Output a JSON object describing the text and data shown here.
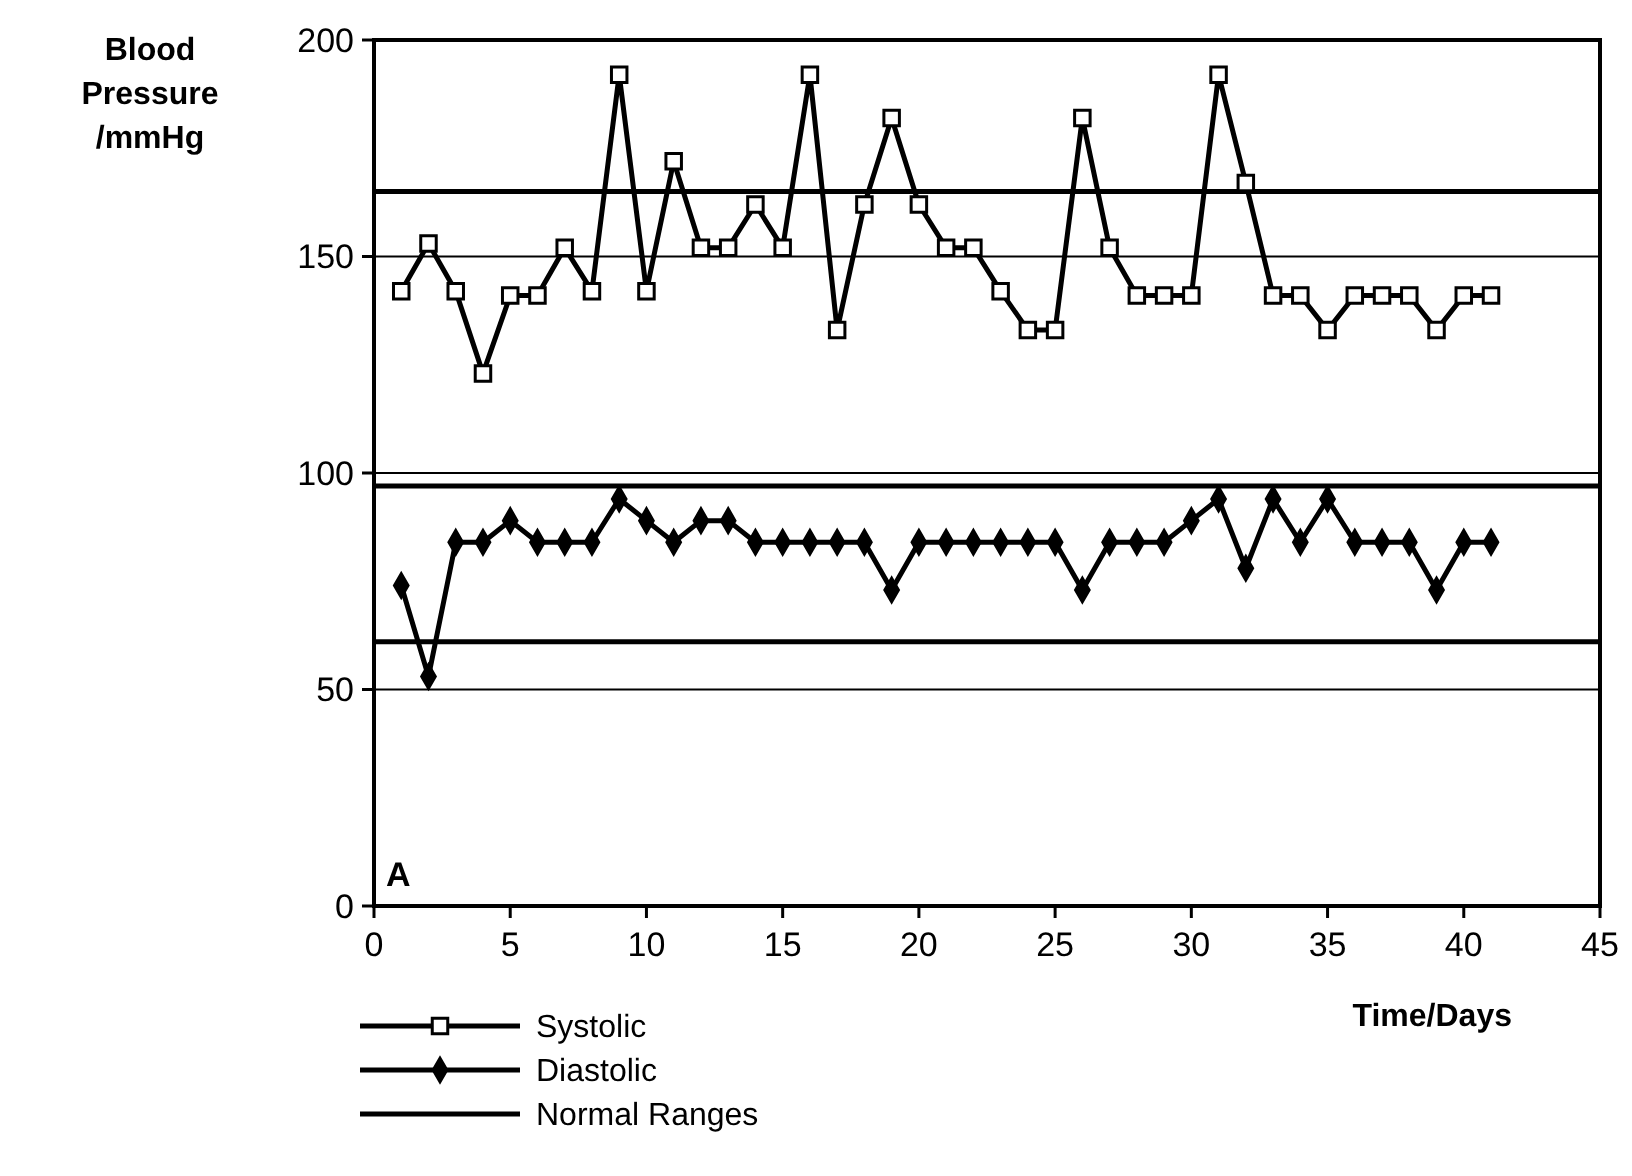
{
  "chart_data": {
    "type": "line",
    "ylabel": "Blood Pressure /mmHg",
    "xlabel": "Time/Days",
    "x": [
      1,
      2,
      3,
      4,
      5,
      6,
      7,
      8,
      9,
      10,
      11,
      12,
      13,
      14,
      15,
      16,
      17,
      18,
      19,
      20,
      21,
      22,
      23,
      24,
      25,
      26,
      27,
      28,
      29,
      30,
      31,
      32,
      33,
      34,
      35,
      36,
      37,
      38,
      39,
      40,
      41
    ],
    "series": [
      {
        "name": "Systolic",
        "color": "#000000",
        "marker": "square",
        "values": [
          142,
          153,
          142,
          123,
          141,
          141,
          152,
          142,
          192,
          142,
          172,
          152,
          152,
          162,
          152,
          192,
          133,
          162,
          182,
          162,
          152,
          152,
          142,
          133,
          133,
          182,
          152,
          141,
          141,
          141,
          192,
          167,
          141,
          141,
          133,
          141,
          141,
          141,
          133,
          141,
          141
        ]
      },
      {
        "name": "Diastolic",
        "color": "#000000",
        "marker": "diamond",
        "values": [
          74,
          53,
          84,
          84,
          89,
          84,
          84,
          84,
          94,
          89,
          84,
          89,
          89,
          84,
          84,
          84,
          84,
          84,
          73,
          84,
          84,
          84,
          84,
          84,
          84,
          73,
          84,
          84,
          84,
          89,
          94,
          78,
          94,
          84,
          94,
          84,
          84,
          84,
          73,
          84,
          84
        ]
      }
    ],
    "ref_lines": [
      {
        "axis": "y",
        "value": 165,
        "label": "Normal Ranges",
        "color": "#000000"
      },
      {
        "axis": "y",
        "value": 97,
        "color": "#000000"
      },
      {
        "axis": "y",
        "value": 61,
        "color": "#000000"
      }
    ],
    "xlim": [
      0,
      45
    ],
    "xticks": [
      0,
      5,
      10,
      15,
      20,
      25,
      30,
      35,
      40,
      45
    ],
    "ylim": [
      0,
      200
    ],
    "yticks": [
      0,
      50,
      100,
      150,
      200
    ],
    "grid": "y",
    "legend": "bottom left",
    "line_style": "solid",
    "annotations": [
      "A"
    ]
  }
}
